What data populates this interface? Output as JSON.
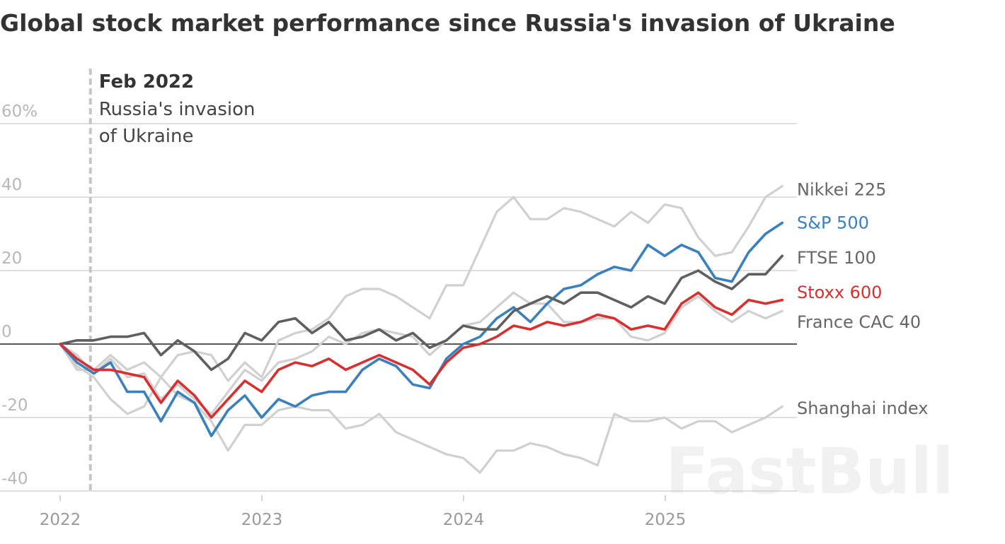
{
  "chart_data": {
    "type": "line",
    "title": "Global stock market performance since Russia's invasion of Ukraine",
    "xlabel": "",
    "ylabel": "",
    "x_ticks": [
      "2022",
      "2023",
      "2024",
      "2025"
    ],
    "x_tick_values": [
      2022,
      2023,
      2024,
      2025
    ],
    "xlim": [
      2022.0,
      2025.58
    ],
    "y_ticks": [
      {
        "value": 60,
        "label": "60%"
      },
      {
        "value": 40,
        "label": "40"
      },
      {
        "value": 20,
        "label": "20"
      },
      {
        "value": 0,
        "label": "0"
      },
      {
        "value": -20,
        "label": "-20"
      },
      {
        "value": -40,
        "label": "-40"
      }
    ],
    "ylim": [
      -40,
      60
    ],
    "grid": true,
    "annotation": {
      "x": 2022.15,
      "title": "Feb 2022",
      "line1": "Russia's invasion",
      "line2": "of Ukraine"
    },
    "watermark": "FastBull",
    "series": [
      {
        "name": "Nikkei 225",
        "color": "#d0d0d0",
        "label_color": "#666666",
        "label_y": 42,
        "values": [
          0,
          -7,
          -7,
          -3,
          -7,
          -5,
          -9,
          -3,
          -2,
          -3,
          -10,
          -5,
          -9,
          1,
          3,
          4,
          7,
          13,
          15,
          15,
          13,
          10,
          7,
          16,
          16,
          26,
          36,
          40,
          34,
          34,
          37,
          36,
          34,
          32,
          36,
          33,
          38,
          37,
          29,
          24,
          25,
          32,
          40,
          43
        ]
      },
      {
        "name": "S&P 500",
        "color": "#3a80bd",
        "label_color": "#3a80bd",
        "label_y": 33,
        "values": [
          0,
          -5,
          -8,
          -5,
          -13,
          -13,
          -21,
          -13,
          -16,
          -25,
          -18,
          -14,
          -20,
          -15,
          -17,
          -14,
          -13,
          -13,
          -7,
          -4,
          -6,
          -11,
          -12,
          -4,
          0,
          2,
          7,
          10,
          6,
          11,
          15,
          16,
          19,
          21,
          20,
          27,
          24,
          27,
          25,
          18,
          17,
          25,
          30,
          33
        ]
      },
      {
        "name": "FTSE 100",
        "color": "#5f5f5f",
        "label_color": "#666666",
        "label_y": 23.5,
        "values": [
          0,
          1,
          1,
          2,
          2,
          3,
          -3,
          1,
          -2,
          -7,
          -4,
          3,
          1,
          6,
          7,
          3,
          6,
          1,
          2,
          4,
          1,
          3,
          -1,
          1,
          5,
          4,
          4,
          9,
          11,
          13,
          11,
          14,
          14,
          12,
          10,
          13,
          11,
          18,
          20,
          17,
          15,
          19,
          19,
          24
        ]
      },
      {
        "name": "Stoxx 600",
        "color": "#d63030",
        "label_color": "#d63030",
        "label_y": 14,
        "values": [
          0,
          -4,
          -7,
          -7,
          -8,
          -9,
          -16,
          -10,
          -14,
          -20,
          -15,
          -10,
          -13,
          -7,
          -5,
          -6,
          -4,
          -7,
          -5,
          -3,
          -5,
          -7,
          -11,
          -5,
          -1,
          0,
          2,
          5,
          4,
          6,
          5,
          6,
          8,
          7,
          4,
          5,
          4,
          11,
          14,
          10,
          8,
          12,
          11,
          12
        ]
      },
      {
        "name": "France CAC 40",
        "color": "#d0d0d0",
        "label_color": "#666666",
        "label_y": 6,
        "values": [
          0,
          -3,
          -8,
          -4,
          -9,
          -8,
          -15,
          -11,
          -15,
          -19,
          -13,
          -7,
          -10,
          -5,
          -4,
          -2,
          2,
          0,
          3,
          4,
          3,
          2,
          -3,
          1,
          5,
          6,
          10,
          14,
          11,
          11,
          6,
          6,
          7,
          7,
          2,
          1,
          3,
          10,
          13,
          9,
          6,
          9,
          7,
          9
        ]
      },
      {
        "name": "Shanghai index",
        "color": "#d0d0d0",
        "label_color": "#666666",
        "label_y": -17.5,
        "values": [
          0,
          -6,
          -9,
          -15,
          -19,
          -17,
          -9,
          -14,
          -16,
          -21,
          -29,
          -22,
          -22,
          -18,
          -17,
          -18,
          -18,
          -23,
          -22,
          -19,
          -24,
          -26,
          -28,
          -30,
          -31,
          -35,
          -29,
          -29,
          -27,
          -28,
          -30,
          -31,
          -33,
          -19,
          -21,
          -21,
          -20,
          -23,
          -21,
          -21,
          -24,
          -22,
          -20,
          -17
        ]
      }
    ]
  }
}
